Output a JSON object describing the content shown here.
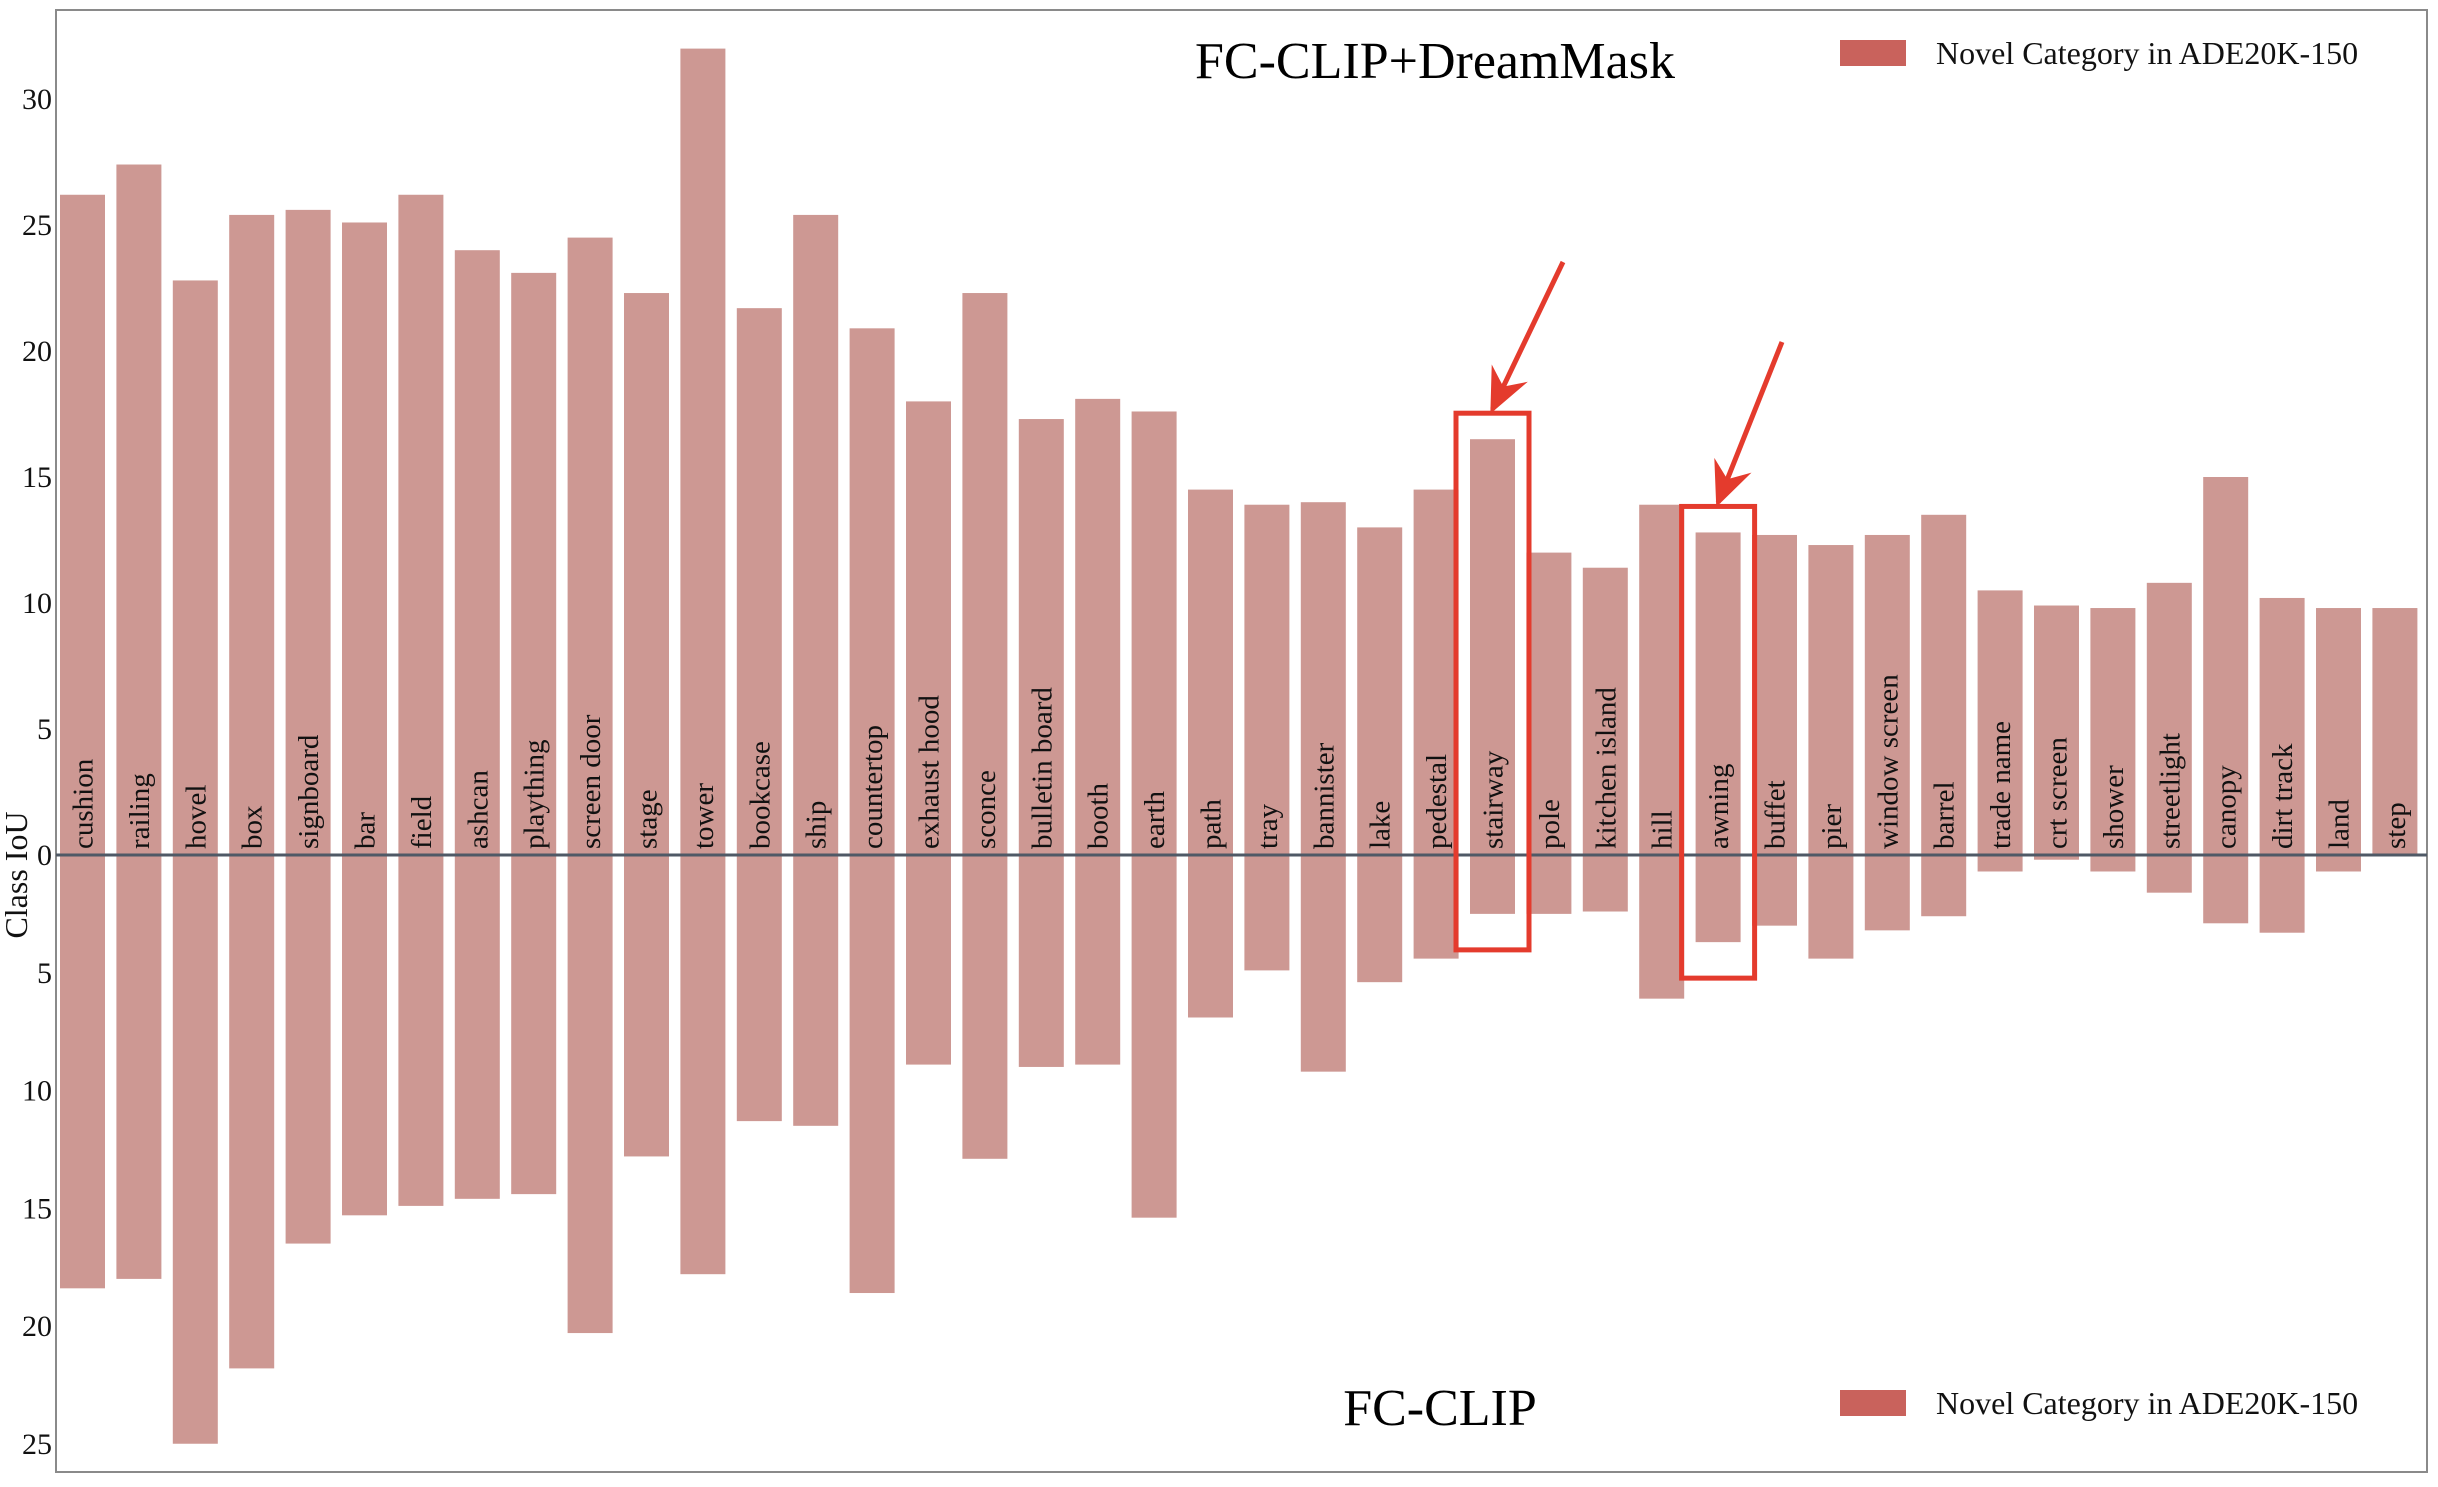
{
  "chart_data": {
    "type": "bar",
    "ylabel": "Class IoU",
    "title_top": "FC-CLIP+DreamMask",
    "title_bottom": "FC-CLIP",
    "legend_top": "Novel Category in ADE20K-150",
    "legend_bottom": "Novel Category in ADE20K-150",
    "legend_placement": "top-right and bottom-right",
    "bar_color": "#cd9893",
    "legend_color": "#c9625c",
    "highlight_color": "#e43b2d",
    "zero_line_color": "#4f5966",
    "ylim_top": [
      0,
      32
    ],
    "ylim_bottom": [
      0,
      25
    ],
    "yticks_top": [
      "0",
      "5",
      "10",
      "15",
      "20",
      "25",
      "30"
    ],
    "yticks_bottom": [
      "5",
      "10",
      "15",
      "20",
      "25"
    ],
    "categories": [
      "cushion",
      "railing",
      "hovel",
      "box",
      "signboard",
      "bar",
      "field",
      "ashcan",
      "plaything",
      "screen door",
      "stage",
      "tower",
      "bookcase",
      "ship",
      "countertop",
      "exhaust hood",
      "sconce",
      "bulletin board",
      "booth",
      "earth",
      "path",
      "tray",
      "bannister",
      "lake",
      "pedestal",
      "stairway",
      "pole",
      "kitchen island",
      "hill",
      "awning",
      "buffet",
      "pier",
      "window screen",
      "barrel",
      "trade name",
      "crt screen",
      "shower",
      "streetlight",
      "canopy",
      "dirt track",
      "land",
      "step"
    ],
    "series": [
      {
        "name": "FC-CLIP+DreamMask",
        "values": [
          26.2,
          27.4,
          22.8,
          25.4,
          25.6,
          25.1,
          26.2,
          24.0,
          23.1,
          24.5,
          22.3,
          32.0,
          21.7,
          25.4,
          20.9,
          18.0,
          22.3,
          17.3,
          18.1,
          17.6,
          14.5,
          13.9,
          14.0,
          13.0,
          14.5,
          16.5,
          12.0,
          11.4,
          13.9,
          12.8,
          12.7,
          12.3,
          12.7,
          13.5,
          10.5,
          9.9,
          9.8,
          10.8,
          15.0,
          10.2,
          9.8,
          9.8
        ]
      },
      {
        "name": "FC-CLIP",
        "values": [
          18.4,
          18.0,
          25.0,
          21.8,
          16.5,
          15.3,
          14.9,
          14.6,
          14.4,
          20.3,
          12.8,
          17.8,
          11.3,
          11.5,
          18.6,
          8.9,
          12.9,
          9.0,
          8.9,
          15.4,
          6.9,
          4.9,
          9.2,
          5.4,
          4.4,
          2.5,
          2.5,
          2.4,
          6.1,
          3.7,
          3.0,
          4.4,
          3.2,
          2.6,
          0.7,
          0.2,
          0.7,
          1.6,
          2.9,
          3.3,
          0.7,
          0.0
        ]
      }
    ],
    "highlighted": [
      "stairway",
      "awning"
    ]
  }
}
